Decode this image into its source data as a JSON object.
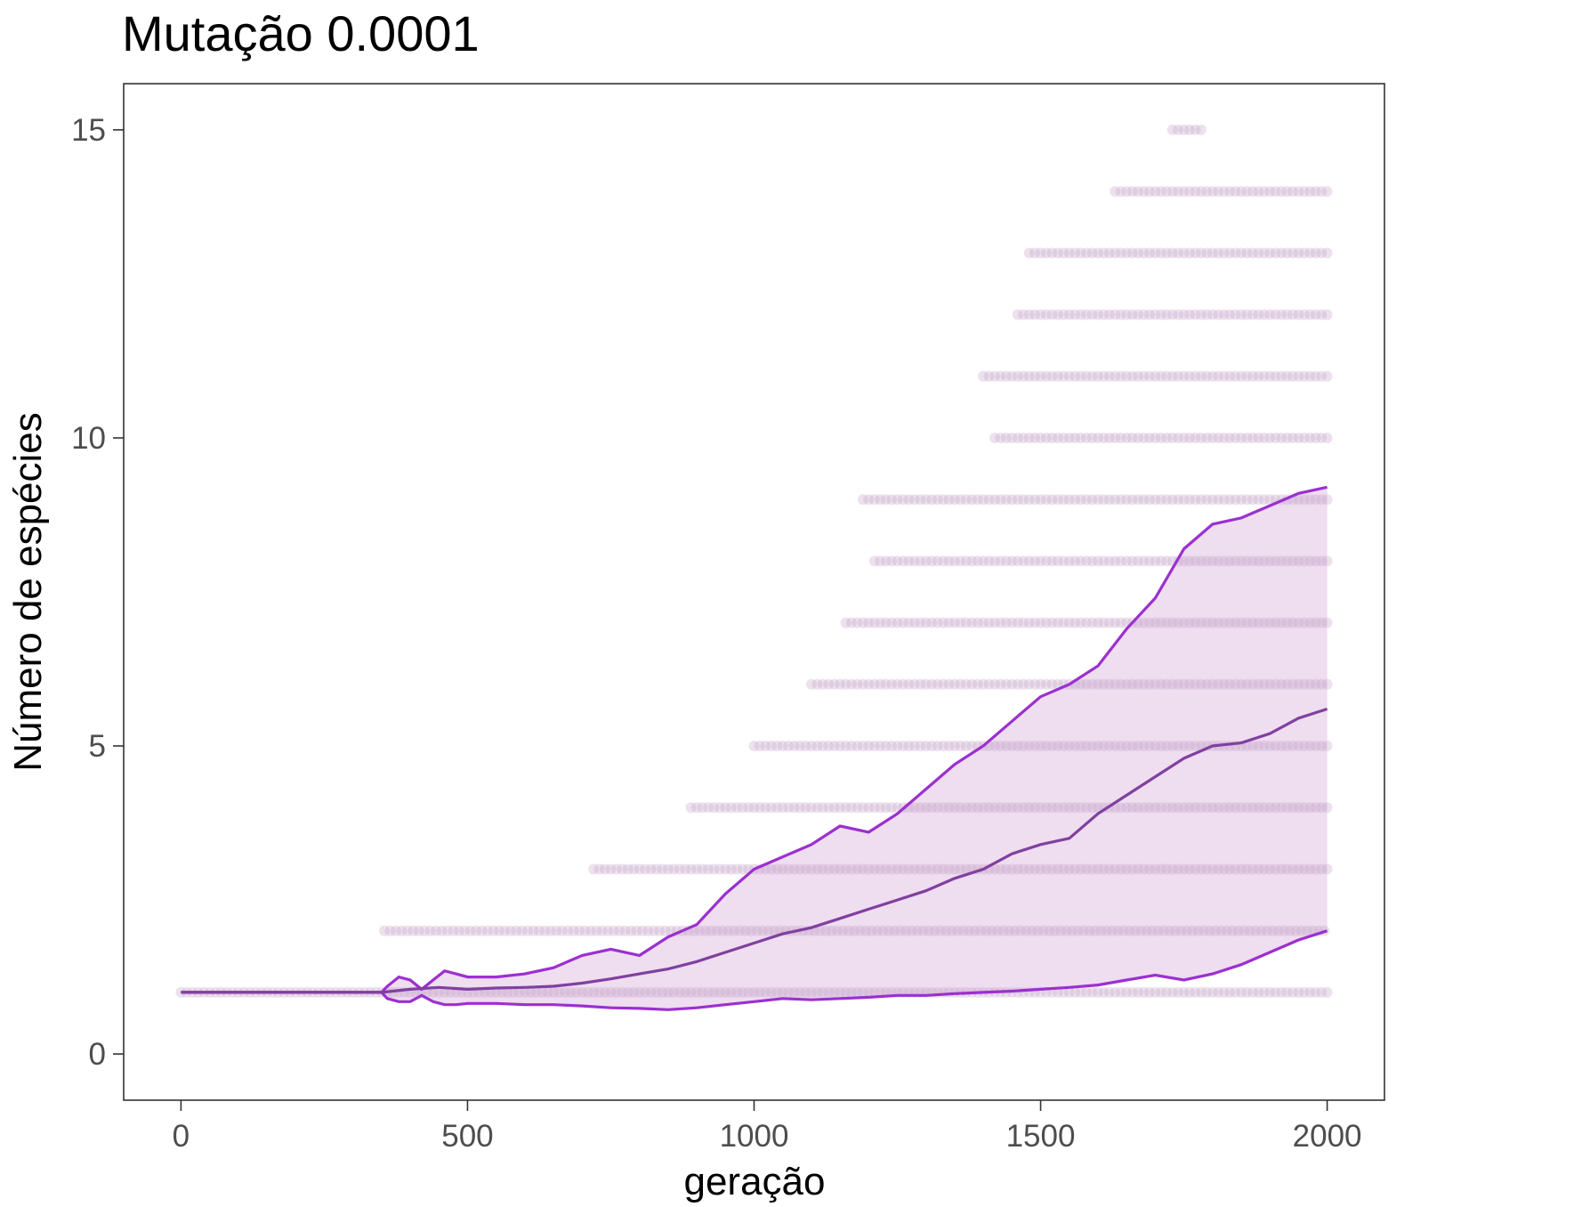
{
  "chart_data": {
    "type": "scatter",
    "title": "Mutação 0.0001",
    "xlabel": "geração",
    "ylabel": "Número de espécies",
    "xlim": [
      -100,
      2100
    ],
    "ylim": [
      -0.75,
      15.75
    ],
    "x_ticks": [
      0,
      500,
      1000,
      1500,
      2000
    ],
    "y_ticks": [
      0,
      5,
      10,
      15
    ],
    "x_tick_labels": [
      "0",
      "500",
      "1000",
      "1500",
      "2000"
    ],
    "y_tick_labels": [
      "0",
      "5",
      "10",
      "15"
    ],
    "grid": false,
    "legend": "none",
    "colors": {
      "points": "#c8a8cc",
      "band_fill": "#e6cbe8",
      "band_edge": "#9b30d0",
      "mean_line": "#8040a0",
      "frame": "#333333"
    },
    "points": [
      {
        "y": 1,
        "x_range": [
          0,
          2000
        ]
      },
      {
        "y": 2,
        "x_range": [
          355,
          2000
        ]
      },
      {
        "y": 3,
        "x_range": [
          720,
          2000
        ]
      },
      {
        "y": 4,
        "x_range": [
          890,
          2000
        ]
      },
      {
        "y": 5,
        "x_range": [
          1000,
          2000
        ]
      },
      {
        "y": 6,
        "x_range": [
          1100,
          2000
        ]
      },
      {
        "y": 7,
        "x_range": [
          1160,
          2000
        ]
      },
      {
        "y": 8,
        "x_range": [
          1210,
          2000
        ]
      },
      {
        "y": 9,
        "x_range": [
          1190,
          2000
        ]
      },
      {
        "y": 10,
        "x_range": [
          1420,
          2000
        ]
      },
      {
        "y": 11,
        "x_range": [
          1400,
          2000
        ]
      },
      {
        "y": 12,
        "x_range": [
          1460,
          2000
        ]
      },
      {
        "y": 13,
        "x_range": [
          1480,
          2000
        ]
      },
      {
        "y": 14,
        "x_range": [
          1630,
          2000
        ]
      },
      {
        "y": 15,
        "x_range": [
          1730,
          1780
        ]
      }
    ],
    "series": [
      {
        "role": "upper",
        "x": [
          0,
          350,
          360,
          380,
          400,
          420,
          440,
          460,
          480,
          500,
          550,
          600,
          650,
          700,
          750,
          800,
          850,
          900,
          950,
          1000,
          1050,
          1100,
          1150,
          1200,
          1250,
          1300,
          1350,
          1400,
          1450,
          1500,
          1550,
          1600,
          1650,
          1700,
          1750,
          1800,
          1850,
          1900,
          1950,
          2000
        ],
        "y": [
          1,
          1,
          1.1,
          1.25,
          1.2,
          1.05,
          1.2,
          1.35,
          1.3,
          1.25,
          1.25,
          1.3,
          1.4,
          1.6,
          1.7,
          1.6,
          1.9,
          2.1,
          2.6,
          3.0,
          3.2,
          3.4,
          3.7,
          3.6,
          3.9,
          4.3,
          4.7,
          5.0,
          5.4,
          5.8,
          6.0,
          6.3,
          6.9,
          7.4,
          8.2,
          8.6,
          8.7,
          8.9,
          9.1,
          9.2
        ]
      },
      {
        "role": "mean",
        "x": [
          0,
          350,
          400,
          450,
          500,
          550,
          600,
          650,
          700,
          750,
          800,
          850,
          900,
          950,
          1000,
          1050,
          1100,
          1150,
          1200,
          1250,
          1300,
          1350,
          1400,
          1450,
          1500,
          1550,
          1600,
          1650,
          1700,
          1750,
          1800,
          1850,
          1900,
          1950,
          2000
        ],
        "y": [
          1,
          1,
          1.05,
          1.08,
          1.05,
          1.07,
          1.08,
          1.1,
          1.15,
          1.22,
          1.3,
          1.38,
          1.5,
          1.65,
          1.8,
          1.95,
          2.05,
          2.2,
          2.35,
          2.5,
          2.65,
          2.85,
          3.0,
          3.25,
          3.4,
          3.5,
          3.9,
          4.2,
          4.5,
          4.8,
          5.0,
          5.05,
          5.2,
          5.45,
          5.6
        ]
      },
      {
        "role": "lower",
        "x": [
          0,
          350,
          360,
          380,
          400,
          420,
          440,
          460,
          480,
          500,
          550,
          600,
          650,
          700,
          750,
          800,
          850,
          900,
          950,
          1000,
          1050,
          1100,
          1150,
          1200,
          1250,
          1300,
          1350,
          1400,
          1450,
          1500,
          1550,
          1600,
          1650,
          1700,
          1750,
          1800,
          1850,
          1900,
          1950,
          2000
        ],
        "y": [
          1,
          1,
          0.9,
          0.85,
          0.85,
          0.95,
          0.85,
          0.8,
          0.8,
          0.82,
          0.82,
          0.8,
          0.8,
          0.78,
          0.75,
          0.74,
          0.72,
          0.75,
          0.8,
          0.85,
          0.9,
          0.88,
          0.9,
          0.92,
          0.95,
          0.95,
          0.98,
          1.0,
          1.02,
          1.05,
          1.08,
          1.12,
          1.2,
          1.28,
          1.2,
          1.3,
          1.45,
          1.65,
          1.85,
          2.0
        ]
      }
    ]
  }
}
